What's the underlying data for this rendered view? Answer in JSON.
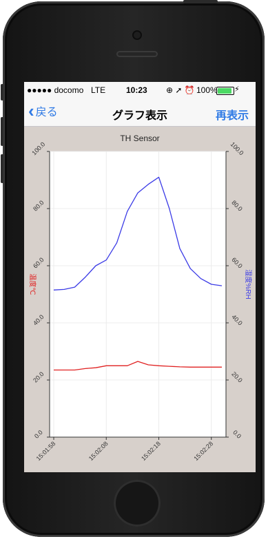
{
  "status_bar": {
    "carrier": "●●●●● docomo",
    "network": "LTE",
    "time": "10:23",
    "indicators": "⊕ ➚ ⏰",
    "battery": "100%",
    "battery_level": 1.0,
    "charging_icon": "⚡"
  },
  "nav": {
    "back_chevron": "‹",
    "back_label": "戻る",
    "title": "グラフ表示",
    "right_label": "再表示"
  },
  "chart_data": {
    "type": "line",
    "title": "TH Sensor",
    "ylabel_left": "温度℃",
    "ylabel_right": "湿度%RH",
    "x": [
      "15:01:58",
      "15:02:00",
      "15:02:02",
      "15:02:04",
      "15:02:06",
      "15:02:08",
      "15:02:10",
      "15:02:12",
      "15:02:14",
      "15:02:16",
      "15:02:18",
      "15:02:20",
      "15:02:22",
      "15:02:24",
      "15:02:26",
      "15:02:28",
      "15:02:30"
    ],
    "x_ticks": [
      "15:01:58",
      "15:02:08",
      "15:02:18",
      "15:02:28"
    ],
    "y_ticks_left": [
      "0.0",
      "20.0",
      "40.0",
      "60.0",
      "80.0",
      "100.0"
    ],
    "y_ticks_right": [
      "0.0",
      "20.0",
      "40.0",
      "60.0",
      "80.0",
      "100.0"
    ],
    "ylim": [
      0,
      100
    ],
    "grid": true,
    "series": [
      {
        "color": "#e02020",
        "axis": "left",
        "values": [
          23.5,
          23.5,
          23.5,
          24.0,
          24.3,
          25.0,
          25.0,
          25.0,
          26.5,
          25.3,
          25.0,
          24.8,
          24.6,
          24.5,
          24.5,
          24.5,
          24.5
        ]
      },
      {
        "color": "#3a3ae6",
        "axis": "right",
        "values": [
          51.5,
          51.7,
          52.5,
          56.0,
          60.0,
          62.0,
          68.0,
          79.0,
          85.5,
          88.5,
          91.0,
          80.0,
          66.0,
          59.0,
          55.5,
          53.5,
          53.0
        ]
      }
    ]
  },
  "colors": {
    "link": "#2f7ae5",
    "temp": "#e02020",
    "humidity": "#3a3ae6"
  }
}
